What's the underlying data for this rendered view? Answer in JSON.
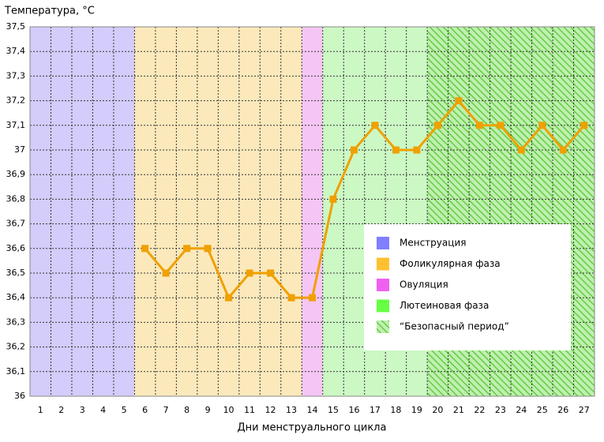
{
  "chart_data": {
    "type": "line",
    "title": "Температура, °C",
    "x_label": "Дни менструального цикла",
    "x": [
      1,
      2,
      3,
      4,
      5,
      6,
      7,
      8,
      9,
      10,
      11,
      12,
      13,
      14,
      15,
      16,
      17,
      18,
      19,
      20,
      21,
      22,
      23,
      24,
      25,
      26,
      27
    ],
    "series": [
      {
        "name": "Температура",
        "color": "#f0a000",
        "values": [
          null,
          null,
          null,
          null,
          null,
          36.6,
          36.5,
          36.6,
          36.6,
          36.4,
          36.5,
          36.5,
          36.4,
          36.4,
          36.8,
          37.0,
          37.1,
          37.0,
          37.0,
          37.1,
          37.2,
          37.1,
          37.1,
          37.0,
          37.1,
          37.0,
          37.1
        ]
      }
    ],
    "ylim": [
      36,
      37.5
    ],
    "yticks": [
      36,
      {
        "value": 36.1,
        "label": "36,1"
      },
      {
        "value": 36.2,
        "label": "36,2"
      },
      {
        "value": 36.3,
        "label": "36,3"
      },
      {
        "value": 36.4,
        "label": "36,4"
      },
      {
        "value": 36.5,
        "label": "36,5"
      },
      {
        "value": 36.6,
        "label": "36,6"
      },
      {
        "value": 36.7,
        "label": "36,7"
      },
      {
        "value": 36.8,
        "label": "36,8"
      },
      {
        "value": 36.9,
        "label": "36,9"
      },
      37,
      {
        "value": 37.1,
        "label": "37,1"
      },
      {
        "value": 37.2,
        "label": "37,2"
      },
      {
        "value": 37.3,
        "label": "37,3"
      },
      {
        "value": 37.4,
        "label": "37,4"
      },
      {
        "value": 37.5,
        "label": "37,5"
      }
    ],
    "grid": true,
    "phases": [
      {
        "name": "Менструация",
        "color": "#7f7fff",
        "background": "#d4ccfa",
        "from": 1,
        "to": 5
      },
      {
        "name": "Фоликулярная фаза",
        "color": "#ffc030",
        "background": "#fbe9bb",
        "from": 6,
        "to": 13
      },
      {
        "name": "Овуляция",
        "color": "#f060f0",
        "background": "#f5c6f5",
        "from": 14,
        "to": 14
      },
      {
        "name": "Лютеиновая фаза",
        "color": "#66ff44",
        "background": "#ccf8c4",
        "from": 15,
        "to": 27
      },
      {
        "name": "“Безопасный период”",
        "color": "#44bb22",
        "hatched": true,
        "from": 20,
        "to": 27
      }
    ]
  }
}
